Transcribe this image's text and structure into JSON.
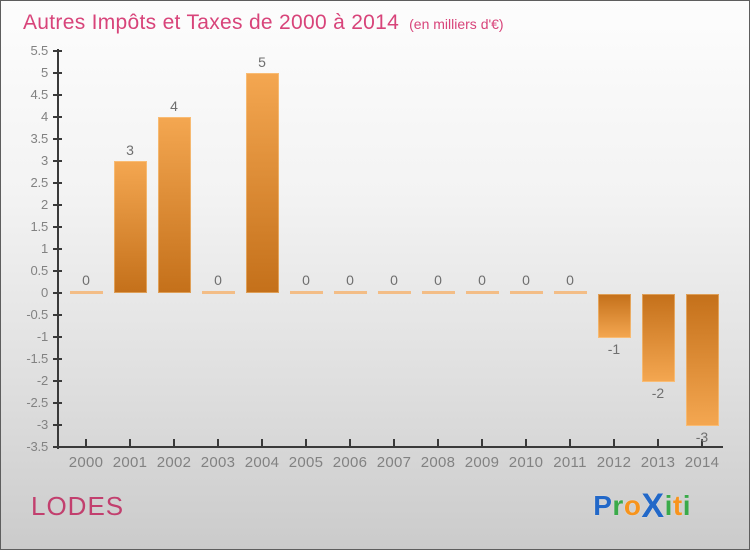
{
  "header": {
    "title": "Autres Impôts et Taxes de 2000 à 2014",
    "subtitle": "(en milliers d'€)"
  },
  "footer": {
    "entity": "LODES",
    "brand_letters": [
      {
        "ch": "P",
        "color": "#2268c8"
      },
      {
        "ch": "r",
        "color": "#3aaa4a"
      },
      {
        "ch": "o",
        "color": "#f7941d"
      },
      {
        "ch": "X",
        "color": "#2268c8",
        "big": true
      },
      {
        "ch": "i",
        "color": "#3aaa4a"
      },
      {
        "ch": "t",
        "color": "#f7941d"
      },
      {
        "ch": "i",
        "color": "#3aaa4a"
      }
    ]
  },
  "chart_data": {
    "type": "bar",
    "title": "Autres Impôts et Taxes de 2000 à 2014",
    "subtitle": "(en milliers d'€)",
    "categories": [
      "2000",
      "2001",
      "2002",
      "2003",
      "2004",
      "2005",
      "2006",
      "2007",
      "2008",
      "2009",
      "2010",
      "2011",
      "2012",
      "2013",
      "2014"
    ],
    "values": [
      0,
      3,
      4,
      0,
      5,
      0,
      0,
      0,
      0,
      0,
      0,
      0,
      -1,
      -2,
      -3
    ],
    "xlabel": "",
    "ylabel": "",
    "ylim": [
      -3.5,
      5.5
    ],
    "ytick_step": 0.5,
    "grid": false,
    "legend": null,
    "value_labels_shown": true,
    "colors": {
      "bar_light": "#f4a751",
      "bar_dark": "#c4701a",
      "zero_bar": "#f3bd86",
      "value_label": "#6f6f6f",
      "axis": "#3a3a3a",
      "tick_label": "#828282",
      "title": "#d8447a",
      "entity": "#c23f6e"
    }
  }
}
